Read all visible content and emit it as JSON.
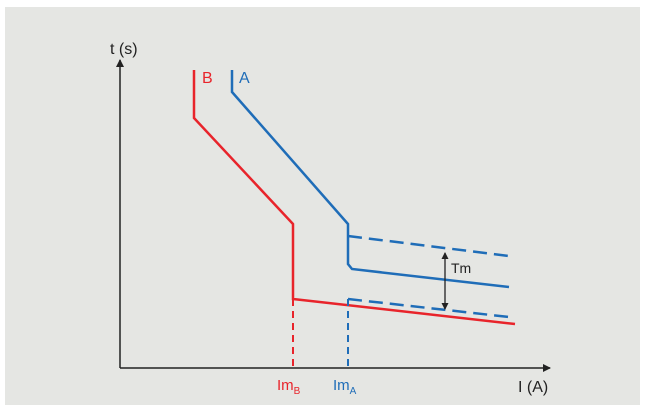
{
  "axes": {
    "y_label": "t (s)",
    "x_label": "I (A)"
  },
  "curves": {
    "a": {
      "label": "A",
      "color": "#1f6db8"
    },
    "b": {
      "label": "B",
      "color": "#e8242b"
    }
  },
  "x_ticks": {
    "im_b": {
      "main": "Im",
      "sub": "B"
    },
    "im_a": {
      "main": "Im",
      "sub": "A"
    }
  },
  "annotations": {
    "margin": "Tm"
  },
  "colors": {
    "axis": "#222222",
    "background": "#e5e6e3"
  }
}
